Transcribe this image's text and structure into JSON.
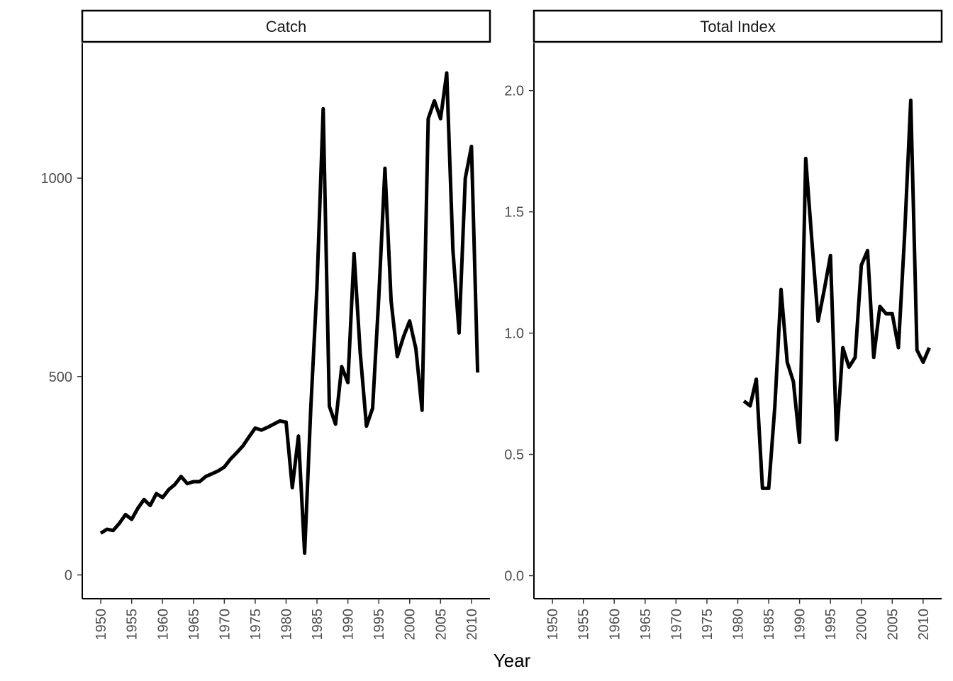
{
  "chart_data": {
    "type": "line",
    "xlabel": "Year",
    "grid": false,
    "x_ticks": [
      1950,
      1955,
      1960,
      1965,
      1970,
      1975,
      1980,
      1985,
      1990,
      1995,
      2000,
      2005,
      2010
    ],
    "xlim": [
      1947,
      2013
    ],
    "line_color": "#000000",
    "panels": [
      {
        "title": "Catch",
        "ylim": [
          -60,
          1340
        ],
        "y_ticks": [
          0,
          500,
          1000
        ],
        "series": [
          {
            "x": [
              1950,
              1951,
              1952,
              1953,
              1954,
              1955,
              1956,
              1957,
              1958,
              1959,
              1960,
              1961,
              1962,
              1963,
              1964,
              1965,
              1966,
              1967,
              1968,
              1969,
              1970,
              1971,
              1972,
              1973,
              1974,
              1975,
              1976,
              1977,
              1978,
              1979,
              1980,
              1981,
              1982,
              1983,
              1984,
              1985,
              1986,
              1987,
              1988,
              1989,
              1990,
              1991,
              1992,
              1993,
              1994,
              1995,
              1996,
              1997,
              1998,
              1999,
              2000,
              2001,
              2002,
              2003,
              2004,
              2005,
              2006,
              2007,
              2008,
              2009,
              2010,
              2011
            ],
            "y": [
              105,
              115,
              112,
              130,
              152,
              140,
              168,
              190,
              175,
              205,
              195,
              215,
              228,
              248,
              230,
              235,
              235,
              248,
              255,
              262,
              272,
              292,
              308,
              325,
              348,
              370,
              365,
              372,
              380,
              388,
              385,
              220,
              350,
              55,
              420,
              730,
              1175,
              425,
              380,
              525,
              485,
              810,
              560,
              375,
              420,
              700,
              1025,
              690,
              550,
              600,
              640,
              570,
              415,
              1150,
              1195,
              1150,
              1265,
              820,
              610,
              1000,
              1080,
              510
            ]
          }
        ]
      },
      {
        "title": "Total Index",
        "ylim": [
          -0.095,
          2.195
        ],
        "y_ticks": [
          0.0,
          0.5,
          1.0,
          1.5,
          2.0
        ],
        "y_tick_labels": [
          "0.0",
          "0.5",
          "1.0",
          "1.5",
          "2.0"
        ],
        "series": [
          {
            "x": [
              1981,
              1982,
              1983,
              1984,
              1985,
              1986,
              1987,
              1988,
              1989,
              1990,
              1991,
              1992,
              1993,
              1994,
              1995,
              1996,
              1997,
              1998,
              1999,
              2000,
              2001,
              2002,
              2003,
              2004,
              2005,
              2006,
              2007,
              2008,
              2009,
              2010,
              2011
            ],
            "y": [
              0.72,
              0.7,
              0.81,
              0.36,
              0.36,
              0.7,
              1.18,
              0.88,
              0.8,
              0.55,
              1.72,
              1.38,
              1.05,
              1.18,
              1.32,
              0.56,
              0.94,
              0.86,
              0.9,
              1.28,
              1.34,
              0.9,
              1.11,
              1.08,
              1.08,
              0.94,
              1.4,
              1.96,
              0.93,
              0.88,
              0.94
            ]
          }
        ]
      }
    ]
  }
}
